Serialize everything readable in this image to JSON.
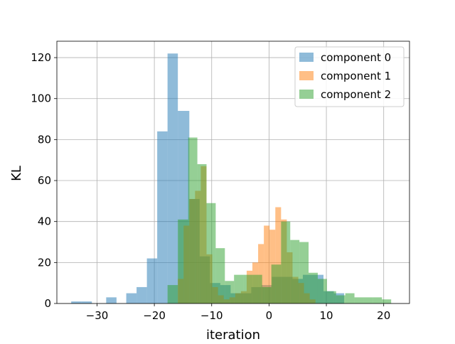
{
  "chart_data": {
    "type": "histogram",
    "xlabel": "iteration",
    "ylabel": "KL",
    "xlim": [
      -37,
      24.5
    ],
    "ylim": [
      0,
      128
    ],
    "x_ticks": [
      -30,
      -20,
      -10,
      0,
      10,
      20
    ],
    "x_tick_labels": [
      "−30",
      "−20",
      "−10",
      "0",
      "10",
      "20"
    ],
    "y_ticks": [
      0,
      20,
      40,
      60,
      80,
      100,
      120
    ],
    "y_tick_labels": [
      "0",
      "20",
      "40",
      "60",
      "80",
      "100",
      "120"
    ],
    "grid": true,
    "legend_position": "top-right",
    "alpha": 0.5,
    "series": [
      {
        "name": "component 0",
        "color": "#1f77b4",
        "bins": [
          [
            -34.5,
            -32.7,
            1
          ],
          [
            -32.7,
            -30.9,
            1
          ],
          [
            -28.4,
            -26.6,
            3
          ],
          [
            -24.9,
            -23.1,
            5
          ],
          [
            -23.1,
            -21.3,
            8
          ],
          [
            -21.3,
            -19.5,
            22
          ],
          [
            -19.5,
            -17.7,
            84
          ],
          [
            -17.7,
            -15.9,
            122
          ],
          [
            -15.9,
            -13.9,
            94
          ],
          [
            -13.9,
            -12.1,
            51
          ],
          [
            -12.1,
            -10.3,
            23
          ],
          [
            -10.3,
            -8.5,
            10
          ],
          [
            -8.5,
            -6.7,
            9
          ],
          [
            -6.7,
            -4.9,
            5
          ],
          [
            -4.9,
            -3.1,
            5
          ],
          [
            -3.1,
            -1.3,
            8
          ],
          [
            -1.3,
            0.5,
            9
          ],
          [
            0.5,
            2.3,
            13
          ],
          [
            2.3,
            4.1,
            13
          ],
          [
            4.1,
            5.9,
            12
          ],
          [
            5.9,
            7.7,
            14
          ],
          [
            7.7,
            9.5,
            14
          ],
          [
            9.5,
            11.3,
            6
          ],
          [
            11.3,
            13.1,
            5
          ]
        ]
      },
      {
        "name": "component 1",
        "color": "#ff7f0e",
        "bins": [
          [
            -15.9,
            -14.9,
            12
          ],
          [
            -14.9,
            -13.9,
            38
          ],
          [
            -13.9,
            -12.9,
            51
          ],
          [
            -12.9,
            -11.9,
            55
          ],
          [
            -11.9,
            -10.9,
            67
          ],
          [
            -10.9,
            -9.9,
            24
          ],
          [
            -9.9,
            -8.9,
            8
          ],
          [
            -8.9,
            -7.9,
            4
          ],
          [
            -7.9,
            -6.9,
            2
          ],
          [
            -6.9,
            -5.9,
            3
          ],
          [
            -5.9,
            -4.9,
            5
          ],
          [
            -4.9,
            -3.9,
            6
          ],
          [
            -3.9,
            -2.9,
            16
          ],
          [
            -2.9,
            -1.9,
            20
          ],
          [
            -1.9,
            -0.9,
            29
          ],
          [
            -0.9,
            0.1,
            38
          ],
          [
            0.1,
            1.1,
            36
          ],
          [
            1.1,
            2.1,
            47
          ],
          [
            2.1,
            3.1,
            41
          ],
          [
            3.1,
            4.1,
            25
          ],
          [
            4.1,
            5.1,
            13
          ],
          [
            5.1,
            6.1,
            10
          ],
          [
            6.1,
            7.1,
            5
          ],
          [
            7.1,
            8.1,
            2
          ]
        ]
      },
      {
        "name": "component 2",
        "color": "#2ca02c",
        "bins": [
          [
            -17.7,
            -15.9,
            9
          ],
          [
            -15.9,
            -14.1,
            41
          ],
          [
            -14.1,
            -12.5,
            81
          ],
          [
            -12.5,
            -10.9,
            68
          ],
          [
            -10.9,
            -9.3,
            49
          ],
          [
            -9.3,
            -7.7,
            27
          ],
          [
            -7.7,
            -6.1,
            11
          ],
          [
            -6.1,
            -4.4,
            14
          ],
          [
            -4.4,
            -2.8,
            14
          ],
          [
            -2.8,
            -1.2,
            14
          ],
          [
            -1.2,
            0.4,
            8
          ],
          [
            0.4,
            2.1,
            19
          ],
          [
            2.1,
            3.7,
            40
          ],
          [
            3.7,
            5.3,
            31
          ],
          [
            5.3,
            6.9,
            30
          ],
          [
            6.9,
            8.5,
            15
          ],
          [
            8.5,
            10.1,
            12
          ],
          [
            10.1,
            11.7,
            6
          ],
          [
            11.7,
            13.3,
            4
          ],
          [
            13.3,
            14.9,
            5
          ],
          [
            14.9,
            16.5,
            3
          ],
          [
            16.5,
            18.1,
            3
          ],
          [
            18.1,
            19.7,
            3
          ],
          [
            19.7,
            21.3,
            2
          ]
        ]
      }
    ]
  }
}
